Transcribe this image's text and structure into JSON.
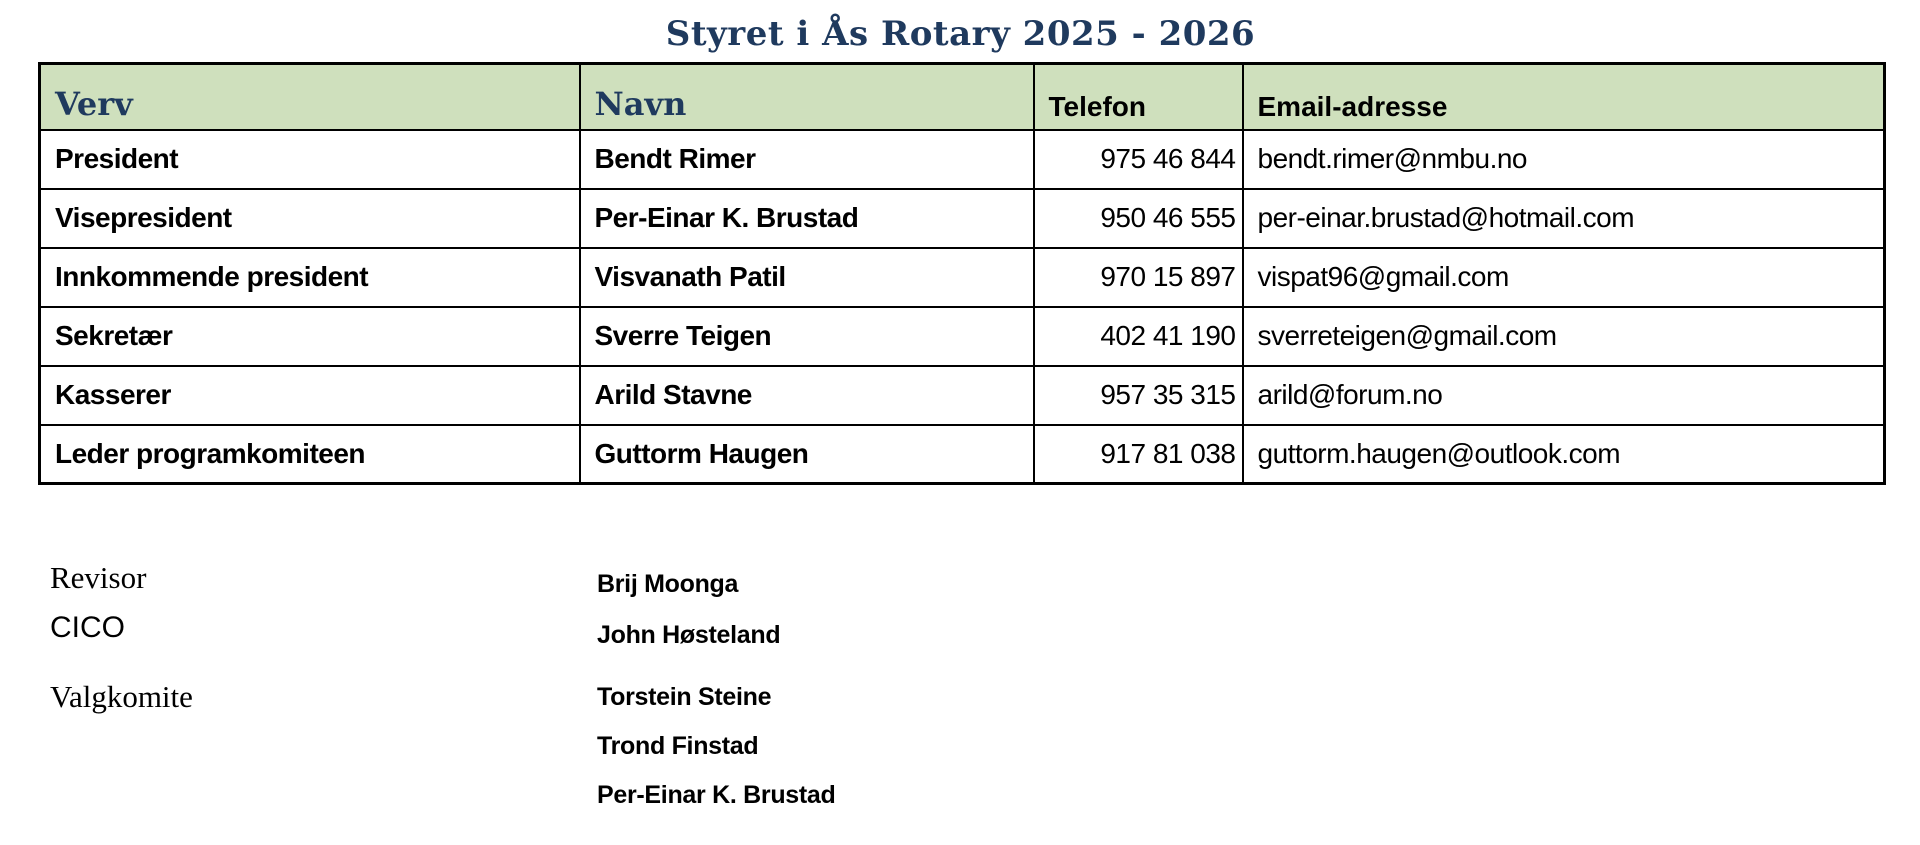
{
  "title": "Styret i Ås Rotary 2025 - 2026",
  "colors": {
    "header_bg": "#cfe0bd",
    "accent": "#1f3a5e",
    "border": "#000000"
  },
  "table": {
    "headers": [
      "Verv",
      "Navn",
      "Telefon",
      "Email-adresse"
    ],
    "rows": [
      {
        "verv": "President",
        "navn": "Bendt Rimer",
        "telefon": "975 46 844",
        "email": "bendt.rimer@nmbu.no"
      },
      {
        "verv": "Visepresident",
        "navn": "Per-Einar K. Brustad",
        "telefon": "950 46 555",
        "email": "per-einar.brustad@hotmail.com"
      },
      {
        "verv": "Innkommende president",
        "navn": "Visvanath Patil",
        "telefon": "970 15 897",
        "email": "vispat96@gmail.com"
      },
      {
        "verv": "Sekretær",
        "navn": "Sverre Teigen",
        "telefon": "402 41 190",
        "email": "sverreteigen@gmail.com"
      },
      {
        "verv": "Kasserer",
        "navn": "Arild Stavne",
        "telefon": "957 35 315",
        "email": "arild@forum.no"
      },
      {
        "verv": "Leder programkomiteen",
        "navn": "Guttorm Haugen",
        "telefon": "917 81 038",
        "email": "guttorm.haugen@outlook.com"
      }
    ]
  },
  "extras": [
    {
      "label": "Revisor",
      "names": [
        "Brij Moonga"
      ]
    },
    {
      "label": "CICO",
      "names": [
        "John Høsteland"
      ]
    },
    {
      "label": "Valgkomite",
      "names": [
        "Torstein Steine",
        "Trond Finstad",
        "Per-Einar K. Brustad"
      ]
    }
  ]
}
